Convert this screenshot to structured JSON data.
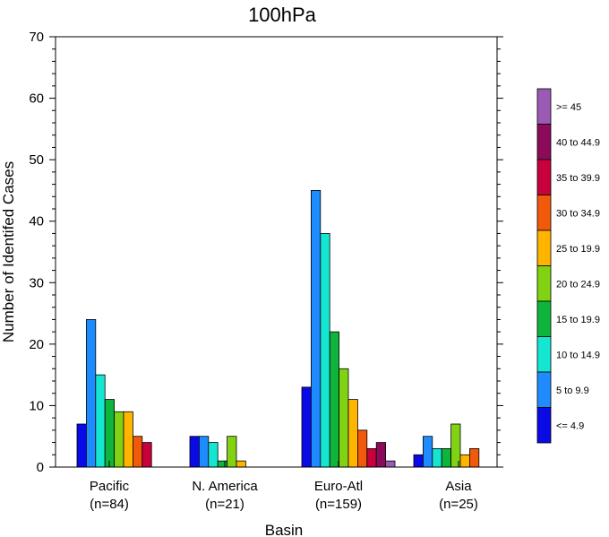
{
  "chart_data": {
    "type": "bar",
    "title": "100hPa",
    "xlabel": "Basin",
    "ylabel": "Number of Identifed Cases",
    "ylim": [
      0,
      70
    ],
    "yticks": [
      0,
      10,
      20,
      30,
      40,
      50,
      60,
      70
    ],
    "grid": false,
    "legend_position": "right",
    "categories": [
      {
        "name": "Pacific",
        "count": "(n=84)"
      },
      {
        "name": "N. America",
        "count": "(n=21)"
      },
      {
        "name": "Euro-Atl",
        "count": "(n=159)"
      },
      {
        "name": "Asia",
        "count": "(n=25)"
      }
    ],
    "series": [
      {
        "name": "<= 4.9",
        "color": "#0a0ae6",
        "values": [
          7,
          5,
          13,
          2
        ]
      },
      {
        "name": "5 to 9.9",
        "color": "#1e8cff",
        "values": [
          24,
          5,
          45,
          5
        ]
      },
      {
        "name": "10 to 14.9",
        "color": "#14e6d2",
        "values": [
          15,
          4,
          38,
          3
        ]
      },
      {
        "name": "15 to 19.9",
        "color": "#0fb43c",
        "values": [
          11,
          1,
          22,
          3
        ]
      },
      {
        "name": "20 to 24.9",
        "color": "#82d214",
        "values": [
          9,
          5,
          16,
          7
        ]
      },
      {
        "name": "25 to 19.9",
        "color": "#ffb400",
        "values": [
          9,
          1,
          11,
          2
        ]
      },
      {
        "name": "30 to 34.9",
        "color": "#f05a0a",
        "values": [
          5,
          0,
          6,
          3
        ]
      },
      {
        "name": "35 to 39.9",
        "color": "#c8003c",
        "values": [
          4,
          0,
          3,
          0
        ]
      },
      {
        "name": "40 to 44.9",
        "color": "#8c0a5a",
        "values": [
          0,
          0,
          4,
          0
        ]
      },
      {
        "name": ">= 45",
        "color": "#9b5ab4",
        "values": [
          0,
          0,
          1,
          0
        ]
      }
    ]
  }
}
